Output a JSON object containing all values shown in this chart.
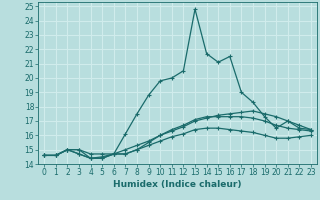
{
  "xlabel": "Humidex (Indice chaleur)",
  "xlim": [
    -0.5,
    23.5
  ],
  "ylim": [
    14,
    25.3
  ],
  "yticks": [
    14,
    15,
    16,
    17,
    18,
    19,
    20,
    21,
    22,
    23,
    24,
    25
  ],
  "xticks": [
    0,
    1,
    2,
    3,
    4,
    5,
    6,
    7,
    8,
    9,
    10,
    11,
    12,
    13,
    14,
    15,
    16,
    17,
    18,
    19,
    20,
    21,
    22,
    23
  ],
  "bg_color": "#b8dede",
  "line_color": "#1a6b6b",
  "grid_color": "#d0ecec",
  "series": [
    {
      "x": [
        0,
        1,
        2,
        3,
        4,
        5,
        6,
        7,
        8,
        9,
        10,
        11,
        12,
        13,
        14,
        15,
        16,
        17,
        18,
        19,
        20,
        21,
        22,
        23
      ],
      "y": [
        14.6,
        14.6,
        15.0,
        15.0,
        14.4,
        14.5,
        14.7,
        16.1,
        17.5,
        18.8,
        19.8,
        20.0,
        20.5,
        24.8,
        21.7,
        21.1,
        21.5,
        19.0,
        18.3,
        17.3,
        16.5,
        17.0,
        16.5,
        16.4
      ]
    },
    {
      "x": [
        0,
        1,
        2,
        3,
        4,
        5,
        6,
        7,
        8,
        9,
        10,
        11,
        12,
        13,
        14,
        15,
        16,
        17,
        18,
        19,
        20,
        21,
        22,
        23
      ],
      "y": [
        14.6,
        14.6,
        15.0,
        15.0,
        14.7,
        14.7,
        14.7,
        15.0,
        15.3,
        15.6,
        16.0,
        16.3,
        16.6,
        17.0,
        17.2,
        17.4,
        17.5,
        17.6,
        17.7,
        17.5,
        17.3,
        17.0,
        16.7,
        16.4
      ]
    },
    {
      "x": [
        0,
        1,
        2,
        3,
        4,
        5,
        6,
        7,
        8,
        9,
        10,
        11,
        12,
        13,
        14,
        15,
        16,
        17,
        18,
        19,
        20,
        21,
        22,
        23
      ],
      "y": [
        14.6,
        14.6,
        15.0,
        14.7,
        14.4,
        14.4,
        14.7,
        14.7,
        15.0,
        15.5,
        16.0,
        16.4,
        16.7,
        17.1,
        17.3,
        17.3,
        17.3,
        17.3,
        17.2,
        17.0,
        16.7,
        16.5,
        16.4,
        16.3
      ]
    },
    {
      "x": [
        0,
        1,
        2,
        3,
        4,
        5,
        6,
        7,
        8,
        9,
        10,
        11,
        12,
        13,
        14,
        15,
        16,
        17,
        18,
        19,
        20,
        21,
        22,
        23
      ],
      "y": [
        14.6,
        14.6,
        15.0,
        14.7,
        14.4,
        14.4,
        14.7,
        14.7,
        15.0,
        15.3,
        15.6,
        15.9,
        16.1,
        16.4,
        16.5,
        16.5,
        16.4,
        16.3,
        16.2,
        16.0,
        15.8,
        15.8,
        15.9,
        16.0
      ]
    }
  ]
}
